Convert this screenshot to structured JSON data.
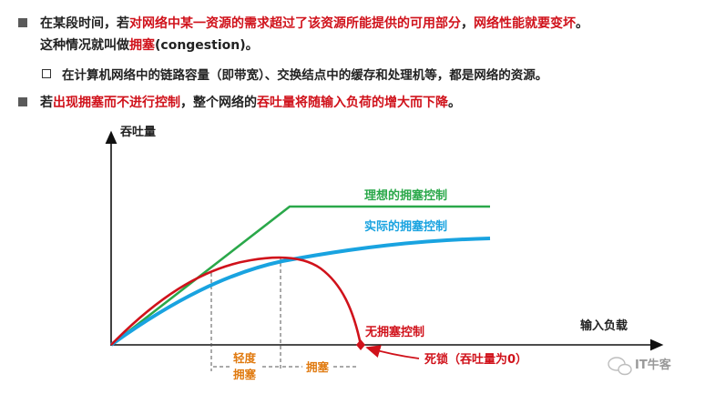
{
  "text": {
    "bullet1": {
      "p1": "在某段时间，若",
      "p2": "对网络中某一资源的需求超过了该资源所能提供的可用部分",
      "p3": "，",
      "p4": "网络性能就要变坏",
      "p5": "。"
    },
    "bullet1_line2": {
      "p1": "这种情况就叫做",
      "p2": "拥塞",
      "p3": "(congestion)。"
    },
    "sub_bullet": "在计算机网络中的链路容量（即带宽）、交换结点中的缓存和处理机等，都是网络的资源。",
    "bullet2": {
      "p1": "若",
      "p2": "出现拥塞而不进行控制",
      "p3": "，整个网络的",
      "p4": "吞吐量将随输入负荷的增大而下降",
      "p5": "。"
    }
  },
  "diagram": {
    "y_axis_label": "吞吐量",
    "x_axis_label": "输入负载",
    "curves": {
      "ideal": {
        "label": "理想的拥塞控制",
        "color": "#2aa84a"
      },
      "actual": {
        "label": "实际的拥塞控制",
        "color": "#19a3e0"
      },
      "none": {
        "label": "无拥塞控制",
        "color": "#d0121b"
      }
    },
    "regions": {
      "light_line1": "轻度",
      "light_line2": "拥塞",
      "congestion": "拥塞"
    },
    "deadlock": "死锁（吞吐量为0）",
    "colors": {
      "region_light": "#e07a10",
      "axis": "#111111"
    }
  },
  "watermark": "IT牛客"
}
